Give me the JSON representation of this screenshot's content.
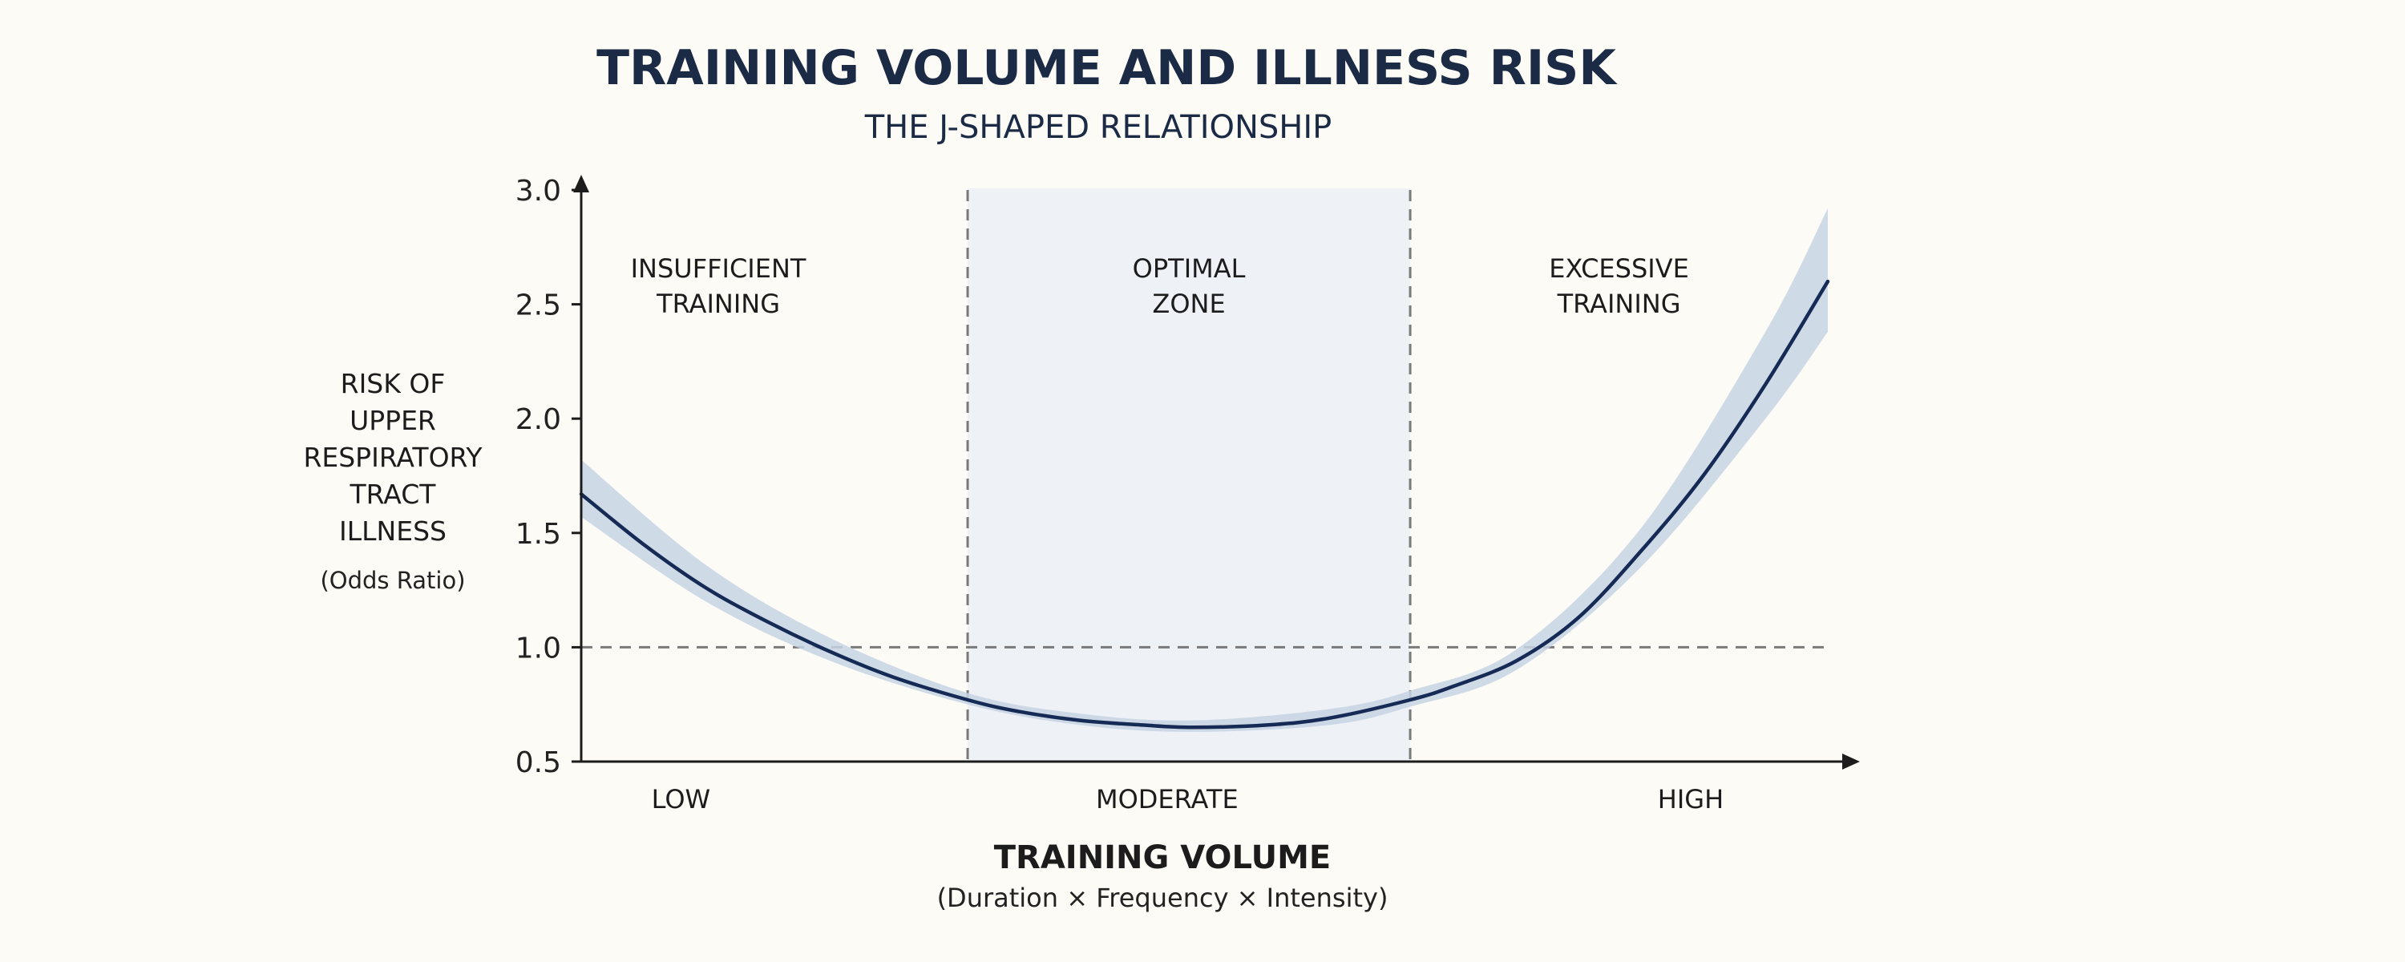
{
  "chart_data": {
    "type": "line",
    "title": "TRAINING VOLUME AND ILLNESS RISK",
    "subtitle": "THE J-SHAPED RELATIONSHIP",
    "ylabel_lines": [
      "RISK OF",
      "UPPER",
      "RESPIRATORY",
      "TRACT",
      "ILLNESS"
    ],
    "ylabel_unit": "(Odds Ratio)",
    "xlabel": "TRAINING VOLUME",
    "xlabel_sub": "(Duration × Frequency × Intensity)",
    "ylim": [
      0.5,
      3.0
    ],
    "yticks": [
      3.0,
      2.5,
      2.0,
      1.5,
      1.0,
      0.5
    ],
    "xlim": [
      0,
      1
    ],
    "x_category_labels": [
      {
        "label": "LOW",
        "x": 0.08
      },
      {
        "label": "MODERATE",
        "x": 0.47
      },
      {
        "label": "HIGH",
        "x": 0.89
      }
    ],
    "zones": [
      {
        "label_lines": [
          "INSUFFICIENT",
          "TRAINING"
        ],
        "x_start": 0.0,
        "x_end": 0.31,
        "highlight": false
      },
      {
        "label_lines": [
          "OPTIMAL",
          "ZONE"
        ],
        "x_start": 0.31,
        "x_end": 0.665,
        "highlight": true
      },
      {
        "label_lines": [
          "EXCESSIVE",
          "TRAINING"
        ],
        "x_start": 0.665,
        "x_end": 1.0,
        "highlight": false
      }
    ],
    "reference_line": {
      "y": 1.0,
      "style": "dashed"
    },
    "series": [
      {
        "x": [
          0.0,
          0.05,
          0.1,
          0.15,
          0.2,
          0.25,
          0.31,
          0.35,
          0.4,
          0.45,
          0.49,
          0.55,
          0.6,
          0.665,
          0.7,
          0.75,
          0.8,
          0.85,
          0.9,
          0.95,
          1.0
        ],
        "y": [
          1.67,
          1.45,
          1.26,
          1.11,
          0.98,
          0.87,
          0.77,
          0.72,
          0.68,
          0.66,
          0.65,
          0.66,
          0.69,
          0.77,
          0.83,
          0.94,
          1.13,
          1.42,
          1.75,
          2.15,
          2.6
        ]
      }
    ],
    "confidence_band": {
      "x": [
        0.0,
        0.1,
        0.2,
        0.31,
        0.4,
        0.49,
        0.6,
        0.665,
        0.75,
        0.85,
        0.95,
        1.0
      ],
      "lower": [
        1.57,
        1.2,
        0.94,
        0.75,
        0.66,
        0.63,
        0.66,
        0.74,
        0.9,
        1.35,
        2.0,
        2.38
      ],
      "upper": [
        1.82,
        1.36,
        1.04,
        0.8,
        0.71,
        0.68,
        0.73,
        0.81,
        0.99,
        1.52,
        2.38,
        2.92
      ]
    },
    "colors": {
      "curve": "#152a55",
      "band": "#c7d3e4",
      "optimal_zone": "#eef1f6",
      "axis": "#1c1c1c",
      "dashed": "#7a7a7a"
    }
  }
}
